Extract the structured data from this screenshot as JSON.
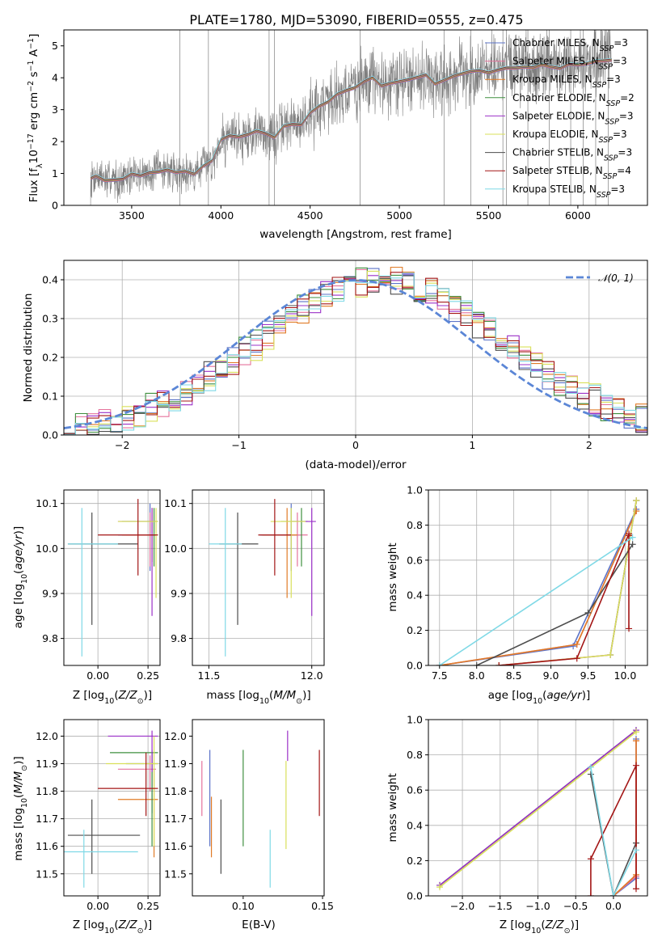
{
  "figure_title": "PLATE=1780, MJD=53090, FIBERID=0555, z=0.475",
  "colors": {
    "Chabrier MILES": "#5b73c8",
    "Salpeter MILES": "#e5739c",
    "Kroupa MILES": "#e07b27",
    "Chabrier ELODIE": "#3f8f3f",
    "Salpeter ELODIE": "#9b30c8",
    "Kroupa ELODIE": "#d9e05a",
    "Chabrier STELIB": "#4d4d4d",
    "Salpeter STELIB": "#a31515",
    "Kroupa STELIB": "#7fd9e6",
    "data": "#7f7f7f",
    "normal": "#5b86d6"
  },
  "legend_spectrum": [
    {
      "model": "Chabrier MILES",
      "nssp": "3"
    },
    {
      "model": "Salpeter MILES",
      "nssp": "3"
    },
    {
      "model": "Kroupa MILES",
      "nssp": "3"
    },
    {
      "model": "Chabrier ELODIE",
      "nssp": "2"
    },
    {
      "model": "Salpeter ELODIE",
      "nssp": "3"
    },
    {
      "model": "Kroupa ELODIE",
      "nssp": "3"
    },
    {
      "model": "Chabrier STELIB",
      "nssp": "3"
    },
    {
      "model": "Salpeter STELIB",
      "nssp": "4"
    },
    {
      "model": "Kroupa STELIB",
      "nssp": "3"
    }
  ],
  "legend_normal": "𝒩(0, 1)",
  "chart_data": [
    {
      "id": "spectrum",
      "type": "line",
      "xlabel": "wavelength [Angstrom, rest frame]",
      "ylabel": "Flux [f_λ 10^-17 erg cm^-2 s^-1 A^-1]",
      "xlim": [
        3120,
        6390
      ],
      "ylim": [
        0,
        5.5
      ],
      "xticks": [
        3500,
        4000,
        4500,
        5000,
        5500,
        6000
      ],
      "yticks": [
        0,
        1,
        2,
        3,
        4,
        5
      ],
      "grid": false,
      "legend_position": "top-right",
      "data_series": {
        "name": "data",
        "x_start": 3270,
        "x_end": 6190
      },
      "model_continuum": [
        [
          3270,
          0.88
        ],
        [
          3300,
          0.95
        ],
        [
          3350,
          0.8
        ],
        [
          3400,
          0.85
        ],
        [
          3450,
          0.8
        ],
        [
          3500,
          0.95
        ],
        [
          3550,
          0.98
        ],
        [
          3600,
          1.0
        ],
        [
          3650,
          1.1
        ],
        [
          3700,
          1.15
        ],
        [
          3750,
          1.0
        ],
        [
          3800,
          1.1
        ],
        [
          3850,
          1.0
        ],
        [
          3900,
          1.25
        ],
        [
          3950,
          1.4
        ],
        [
          4000,
          2.05
        ],
        [
          4050,
          2.2
        ],
        [
          4100,
          2.15
        ],
        [
          4150,
          2.2
        ],
        [
          4200,
          2.35
        ],
        [
          4250,
          2.3
        ],
        [
          4300,
          2.1
        ],
        [
          4350,
          2.45
        ],
        [
          4400,
          2.6
        ],
        [
          4450,
          2.55
        ],
        [
          4500,
          2.95
        ],
        [
          4550,
          3.1
        ],
        [
          4600,
          3.3
        ],
        [
          4650,
          3.5
        ],
        [
          4700,
          3.55
        ],
        [
          4750,
          3.65
        ],
        [
          4800,
          3.85
        ],
        [
          4850,
          3.95
        ],
        [
          4900,
          3.8
        ],
        [
          4950,
          3.85
        ],
        [
          5000,
          3.85
        ],
        [
          5050,
          4.0
        ],
        [
          5100,
          4.05
        ],
        [
          5150,
          4.05
        ],
        [
          5200,
          3.85
        ],
        [
          5250,
          3.95
        ],
        [
          5300,
          4.0
        ],
        [
          5350,
          4.1
        ],
        [
          5400,
          4.15
        ],
        [
          5450,
          4.2
        ],
        [
          5500,
          4.2
        ],
        [
          5550,
          4.25
        ],
        [
          5600,
          4.3
        ],
        [
          5650,
          4.3
        ],
        [
          5700,
          4.35
        ],
        [
          5750,
          4.35
        ],
        [
          5800,
          4.4
        ],
        [
          5850,
          4.35
        ],
        [
          5900,
          4.35
        ],
        [
          5950,
          4.4
        ],
        [
          6000,
          4.45
        ],
        [
          6050,
          4.5
        ],
        [
          6100,
          4.5
        ],
        [
          6150,
          4.55
        ],
        [
          6190,
          4.55
        ]
      ]
    },
    {
      "id": "residuals",
      "type": "line",
      "xlabel": "(data-model)/error",
      "ylabel": "Normed distribution",
      "xlim": [
        -2.5,
        2.5
      ],
      "ylim": [
        0,
        0.45
      ],
      "xticks": [
        -2,
        -1,
        0,
        1,
        2
      ],
      "yticks": [
        0.0,
        0.1,
        0.2,
        0.3,
        0.4
      ],
      "grid": true,
      "legend_position": "top-right",
      "normal_curve": {
        "mean": 0,
        "sigma": 1
      }
    },
    {
      "id": "age_vs_Z",
      "type": "scatter",
      "xlabel": "Z [log10(Z/Z⊙)]",
      "ylabel": "age  [log10(age/yr)]",
      "xlim": [
        -0.17,
        0.31
      ],
      "ylim": [
        9.74,
        10.13
      ],
      "xticks": [
        0.0,
        0.25
      ],
      "xtick_labels": [
        "0.00",
        "0.25"
      ],
      "yticks": [
        9.8,
        9.9,
        10.0,
        10.1
      ],
      "grid": true,
      "points": [
        {
          "model": "Chabrier MILES",
          "x": 0.26,
          "y": 10.03,
          "xlo": 0.1,
          "xhi": 0.29,
          "ylo": 9.95,
          "yhi": 10.1
        },
        {
          "model": "Salpeter MILES",
          "x": 0.26,
          "y": 10.03,
          "xlo": 0.14,
          "xhi": 0.29,
          "ylo": 9.96,
          "yhi": 10.08
        },
        {
          "model": "Kroupa MILES",
          "x": 0.27,
          "y": 10.03,
          "xlo": 0.12,
          "xhi": 0.29,
          "ylo": 9.97,
          "yhi": 10.09
        },
        {
          "model": "Chabrier ELODIE",
          "x": 0.28,
          "y": 10.06,
          "xlo": 0.12,
          "xhi": 0.3,
          "ylo": 9.96,
          "yhi": 10.09
        },
        {
          "model": "Salpeter ELODIE",
          "x": 0.27,
          "y": 10.06,
          "xlo": 0.1,
          "xhi": 0.29,
          "ylo": 9.85,
          "yhi": 10.09
        },
        {
          "model": "Kroupa ELODIE",
          "x": 0.29,
          "y": 10.06,
          "xlo": 0.1,
          "xhi": 0.3,
          "ylo": 9.89,
          "yhi": 10.09
        },
        {
          "model": "Chabrier STELIB",
          "x": -0.03,
          "y": 10.01,
          "xlo": -0.15,
          "xhi": 0.2,
          "ylo": 9.83,
          "yhi": 10.08
        },
        {
          "model": "Salpeter STELIB",
          "x": 0.2,
          "y": 10.03,
          "xlo": 0.0,
          "xhi": 0.3,
          "ylo": 9.94,
          "yhi": 10.11
        },
        {
          "model": "Kroupa STELIB",
          "x": -0.08,
          "y": 10.01,
          "xlo": -0.15,
          "xhi": 0.1,
          "ylo": 9.76,
          "yhi": 10.09
        }
      ]
    },
    {
      "id": "age_vs_mass",
      "type": "scatter",
      "xlabel": "mass [log10(M/M⊙)]",
      "ylabel": "",
      "xlim": [
        11.42,
        12.06
      ],
      "ylim": [
        9.74,
        10.13
      ],
      "xticks": [
        11.5,
        12.0
      ],
      "yticks": [
        9.8,
        9.9,
        10.0,
        10.1
      ],
      "grid": true,
      "points": [
        {
          "model": "Chabrier MILES",
          "x": 11.9,
          "y": 10.03,
          "xlo": 11.75,
          "xhi": 11.95,
          "ylo": 9.95,
          "yhi": 10.1
        },
        {
          "model": "Salpeter MILES",
          "x": 11.93,
          "y": 10.03,
          "xlo": 11.85,
          "xhi": 11.98,
          "ylo": 9.96,
          "yhi": 10.08
        },
        {
          "model": "Kroupa MILES",
          "x": 11.88,
          "y": 10.03,
          "xlo": 11.76,
          "xhi": 11.93,
          "ylo": 9.89,
          "yhi": 10.09
        },
        {
          "model": "Chabrier ELODIE",
          "x": 11.95,
          "y": 10.06,
          "xlo": 11.85,
          "xhi": 11.98,
          "ylo": 9.96,
          "yhi": 10.09
        },
        {
          "model": "Salpeter ELODIE",
          "x": 12.0,
          "y": 10.06,
          "xlo": 11.9,
          "xhi": 12.02,
          "ylo": 9.85,
          "yhi": 10.09
        },
        {
          "model": "Kroupa ELODIE",
          "x": 11.9,
          "y": 10.06,
          "xlo": 11.8,
          "xhi": 11.97,
          "ylo": 9.89,
          "yhi": 10.09
        },
        {
          "model": "Chabrier STELIB",
          "x": 11.64,
          "y": 10.01,
          "xlo": 11.55,
          "xhi": 11.74,
          "ylo": 9.83,
          "yhi": 10.08
        },
        {
          "model": "Salpeter STELIB",
          "x": 11.82,
          "y": 10.03,
          "xlo": 11.74,
          "xhi": 11.9,
          "ylo": 9.94,
          "yhi": 10.11
        },
        {
          "model": "Kroupa STELIB",
          "x": 11.58,
          "y": 10.01,
          "xlo": 11.5,
          "xhi": 11.66,
          "ylo": 9.76,
          "yhi": 10.09
        }
      ]
    },
    {
      "id": "mass_weight_vs_age",
      "type": "line",
      "xlabel": "age  [log10(age/yr)]",
      "ylabel": "mass weight",
      "xlim": [
        7.35,
        10.3
      ],
      "ylim": [
        0.0,
        1.0
      ],
      "xticks": [
        7.5,
        8.0,
        8.5,
        9.0,
        9.5,
        10.0
      ],
      "yticks": [
        0.0,
        0.2,
        0.4,
        0.6,
        0.8,
        1.0
      ],
      "grid": true,
      "series": [
        {
          "model": "Chabrier MILES",
          "x": [
            7.5,
            9.3,
            10.15
          ],
          "y": [
            0.0,
            0.11,
            0.89
          ]
        },
        {
          "model": "Salpeter MILES",
          "x": [
            7.5,
            9.35,
            10.15
          ],
          "y": [
            0.0,
            0.12,
            0.88
          ]
        },
        {
          "model": "Kroupa MILES",
          "x": [
            7.5,
            9.35,
            10.15
          ],
          "y": [
            0.0,
            0.12,
            0.88
          ]
        },
        {
          "model": "Chabrier ELODIE",
          "x": [
            9.8,
            10.15
          ],
          "y": [
            0.06,
            0.94
          ]
        },
        {
          "model": "Salpeter ELODIE",
          "x": [
            8.3,
            9.8,
            10.15
          ],
          "y": [
            0.0,
            0.06,
            0.94
          ]
        },
        {
          "model": "Kroupa ELODIE",
          "x": [
            8.3,
            9.8,
            10.15
          ],
          "y": [
            0.0,
            0.06,
            0.94
          ]
        },
        {
          "model": "Chabrier STELIB",
          "x": [
            8.0,
            9.5,
            10.1
          ],
          "y": [
            0.0,
            0.3,
            0.69
          ]
        },
        {
          "model": "Salpeter STELIB",
          "x": [
            8.3,
            9.35,
            10.05,
            10.05,
            10.05
          ],
          "y": [
            0.0,
            0.04,
            0.75,
            0.21,
            0.74
          ]
        },
        {
          "model": "Kroupa STELIB",
          "x": [
            7.5,
            10.1
          ],
          "y": [
            0.0,
            0.73
          ]
        }
      ]
    },
    {
      "id": "mass_vs_Z",
      "type": "scatter",
      "xlabel": "Z [log10(Z/Z⊙)]",
      "ylabel": "mass [log10(M/M⊙)]",
      "xlim": [
        -0.17,
        0.31
      ],
      "ylim": [
        11.42,
        12.06
      ],
      "xticks": [
        0.0,
        0.25
      ],
      "xtick_labels": [
        "0.00",
        "0.25"
      ],
      "yticks": [
        11.5,
        11.6,
        11.7,
        11.8,
        11.9,
        12.0
      ],
      "grid": true,
      "points": [
        {
          "model": "Chabrier MILES",
          "x": 0.27,
          "y": 11.9,
          "xlo": 0.14,
          "xhi": 0.3,
          "ylo": 11.72,
          "yhi": 11.95
        },
        {
          "model": "Salpeter MILES",
          "x": 0.26,
          "y": 11.88,
          "xlo": 0.1,
          "xhi": 0.29,
          "ylo": 11.8,
          "yhi": 11.93
        },
        {
          "model": "Kroupa MILES",
          "x": 0.28,
          "y": 11.77,
          "xlo": 0.1,
          "xhi": 0.3,
          "ylo": 11.56,
          "yhi": 11.88
        },
        {
          "model": "Chabrier ELODIE",
          "x": 0.27,
          "y": 11.94,
          "xlo": 0.06,
          "xhi": 0.3,
          "ylo": 11.6,
          "yhi": 11.94
        },
        {
          "model": "Salpeter ELODIE",
          "x": 0.27,
          "y": 12.0,
          "xlo": 0.05,
          "xhi": 0.3,
          "ylo": 11.87,
          "yhi": 12.02
        },
        {
          "model": "Kroupa ELODIE",
          "x": 0.28,
          "y": 11.9,
          "xlo": 0.04,
          "xhi": 0.3,
          "ylo": 11.6,
          "yhi": 12.0
        },
        {
          "model": "Chabrier STELIB",
          "x": -0.03,
          "y": 11.64,
          "xlo": -0.15,
          "xhi": 0.21,
          "ylo": 11.5,
          "yhi": 11.77
        },
        {
          "model": "Salpeter STELIB",
          "x": 0.24,
          "y": 11.81,
          "xlo": 0.0,
          "xhi": 0.3,
          "ylo": 11.71,
          "yhi": 11.94
        },
        {
          "model": "Kroupa STELIB",
          "x": -0.07,
          "y": 11.58,
          "xlo": -0.17,
          "xhi": 0.2,
          "ylo": 11.45,
          "yhi": 11.66
        }
      ]
    },
    {
      "id": "mass_vs_ebv",
      "type": "scatter",
      "xlabel": "E(B-V)",
      "ylabel": "",
      "xlim": [
        0.068,
        0.151
      ],
      "ylim": [
        11.42,
        12.06
      ],
      "xticks": [
        0.05,
        0.1,
        0.15
      ],
      "xtick_labels": [
        "0.05",
        "0.10",
        "0.15"
      ],
      "yticks": [
        11.5,
        11.6,
        11.7,
        11.8,
        11.9,
        12.0
      ],
      "grid": false,
      "points": [
        {
          "model": "Chabrier MILES",
          "x": 0.079,
          "y": 11.8,
          "ylo": 11.6,
          "yhi": 11.95
        },
        {
          "model": "Salpeter MILES",
          "x": 0.074,
          "y": 11.81,
          "ylo": 11.71,
          "yhi": 11.91
        },
        {
          "model": "Kroupa MILES",
          "x": 0.08,
          "y": 11.7,
          "ylo": 11.56,
          "yhi": 11.78
        },
        {
          "model": "Chabrier ELODIE",
          "x": 0.1,
          "y": 11.8,
          "ylo": 11.6,
          "yhi": 11.95
        },
        {
          "model": "Salpeter ELODIE",
          "x": 0.128,
          "y": 11.97,
          "ylo": 11.91,
          "yhi": 12.02
        },
        {
          "model": "Kroupa ELODIE",
          "x": 0.127,
          "y": 11.8,
          "ylo": 11.59,
          "yhi": 11.91
        },
        {
          "model": "Chabrier STELIB",
          "x": 0.086,
          "y": 11.64,
          "ylo": 11.5,
          "yhi": 11.77
        },
        {
          "model": "Salpeter STELIB",
          "x": 0.148,
          "y": 11.8,
          "ylo": 11.71,
          "yhi": 11.95
        },
        {
          "model": "Kroupa STELIB",
          "x": 0.117,
          "y": 11.58,
          "ylo": 11.45,
          "yhi": 11.66
        }
      ]
    },
    {
      "id": "mass_weight_vs_Z",
      "type": "line",
      "xlabel": "Z [log10(Z/Z⊙)]",
      "ylabel": "mass weight",
      "xlim": [
        -2.45,
        0.45
      ],
      "ylim": [
        0.0,
        1.0
      ],
      "xticks": [
        -2.0,
        -1.5,
        -1.0,
        -0.5,
        0.0
      ],
      "yticks": [
        0.0,
        0.2,
        0.4,
        0.6,
        0.8,
        1.0
      ],
      "grid": true,
      "series": [
        {
          "model": "Chabrier MILES",
          "x": [
            0.0,
            0.3,
            0.3
          ],
          "y": [
            0.0,
            0.1,
            0.89
          ]
        },
        {
          "model": "Salpeter MILES",
          "x": [
            0.0,
            0.3,
            0.3
          ],
          "y": [
            0.0,
            0.11,
            0.88
          ]
        },
        {
          "model": "Kroupa MILES",
          "x": [
            0.0,
            0.3,
            0.3
          ],
          "y": [
            0.0,
            0.12,
            0.88
          ]
        },
        {
          "model": "Chabrier ELODIE",
          "x": [
            -2.3,
            0.3
          ],
          "y": [
            0.06,
            0.94
          ]
        },
        {
          "model": "Salpeter ELODIE",
          "x": [
            -2.3,
            0.3
          ],
          "y": [
            0.06,
            0.94
          ]
        },
        {
          "model": "Kroupa ELODIE",
          "x": [
            -2.3,
            0.3
          ],
          "y": [
            0.05,
            0.93
          ]
        },
        {
          "model": "Chabrier STELIB",
          "x": [
            -0.3,
            0.0,
            0.3
          ],
          "y": [
            0.69,
            0.0,
            0.3
          ]
        },
        {
          "model": "Salpeter STELIB",
          "x": [
            -0.3,
            -0.3,
            0.3,
            0.3
          ],
          "y": [
            0.0,
            0.21,
            0.74,
            0.04
          ]
        },
        {
          "model": "Kroupa STELIB",
          "x": [
            -0.3,
            0.0,
            0.3
          ],
          "y": [
            0.73,
            0.0,
            0.26
          ]
        }
      ]
    }
  ]
}
